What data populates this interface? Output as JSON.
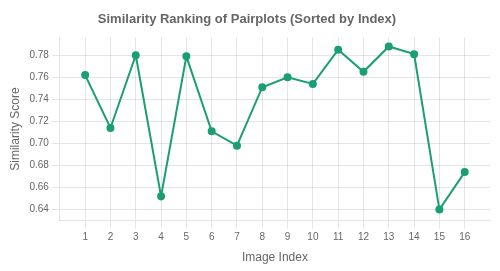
{
  "chart_data": {
    "type": "line",
    "title": "Similarity Ranking of Pairplots (Sorted by Index)",
    "xlabel": "Image Index",
    "ylabel": "Similarity Score",
    "x": [
      1,
      2,
      3,
      4,
      5,
      6,
      7,
      8,
      9,
      10,
      11,
      12,
      13,
      14,
      15,
      16
    ],
    "values": [
      0.762,
      0.714,
      0.78,
      0.652,
      0.779,
      0.711,
      0.698,
      0.751,
      0.76,
      0.754,
      0.785,
      0.765,
      0.788,
      0.781,
      0.64,
      0.674
    ],
    "color": "#1a9e76",
    "marker": "circle",
    "xlim": [
      0,
      17
    ],
    "xticks": [
      1,
      2,
      3,
      4,
      5,
      6,
      7,
      8,
      9,
      10,
      11,
      12,
      13,
      14,
      15,
      16
    ],
    "ylim": [
      0.63,
      0.796
    ],
    "yticks": [
      0.64,
      0.66,
      0.68,
      {
        "value": 0.7,
        "label": "0.70"
      },
      0.72,
      0.74,
      0.76,
      0.78
    ],
    "grid": true
  }
}
